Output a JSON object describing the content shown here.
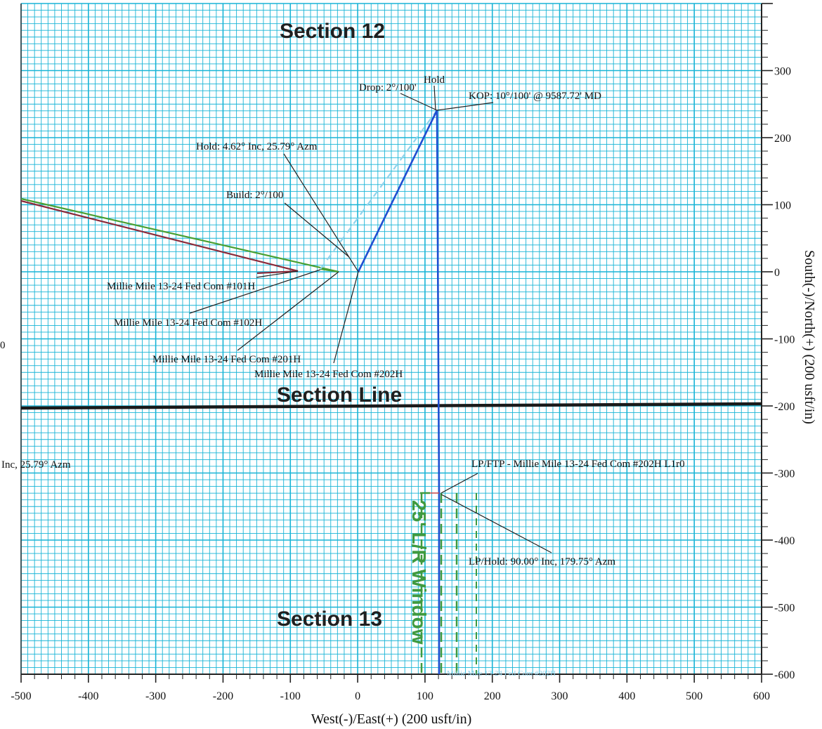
{
  "axes": {
    "x_label": "West(-)/East(+) (200 usft/in)",
    "y_label": "South(-)/North(+) (200 usft/in)",
    "x_ticks": [
      -500,
      -400,
      -300,
      -200,
      -100,
      0,
      100,
      200,
      300,
      400,
      500,
      600
    ],
    "y_ticks": [
      300,
      200,
      100,
      0,
      -100,
      -200,
      -300,
      -400,
      -500,
      -600
    ],
    "x_range": [
      -500,
      600
    ],
    "y_range": [
      -600,
      400
    ],
    "grid": true
  },
  "section_labels": {
    "section_12": "Section 12",
    "section_line": "Section Line",
    "section_13": "Section 13",
    "window": "25' L/R Window"
  },
  "annotations": {
    "hold_top": "Hold",
    "drop": "Drop: 2°/100'",
    "kop": "KOP: 10°/100' @ 9587.72' MD",
    "hold_inc": "Hold: 4.62° Inc, 25.79° Azm",
    "build": "Build: 2°/100",
    "well_101h": "Millie Mile 13-24 Fed Com #101H",
    "well_102h": "Millie Mile 13-24 Fed Com #102H",
    "well_201h": "Millie Mile 13-24 Fed Com #201H",
    "well_202h": "Millie Mile 13-24 Fed Com #202H",
    "left_cut": "Inc, 25.79° Azm",
    "left_zero": "0",
    "lp_ftp": "LP/FTP - Millie Mile 13-24 Fed Com #202H L1r0",
    "lp_hold": "LP/Hold: 90.00° Inc, 179.75° Azm",
    "bottom_faint": "Millie Mile 13-24 Fed Com #202H"
  },
  "colors": {
    "grid": "#18b4d6",
    "main_well": "#1f4fd1",
    "planned_dashed": "#8fd3ec",
    "offset_green": "#4aa033",
    "offset_red": "#8c2a3a",
    "window_green": "#3f9a3f",
    "section_line": "#1a1a1a"
  }
}
